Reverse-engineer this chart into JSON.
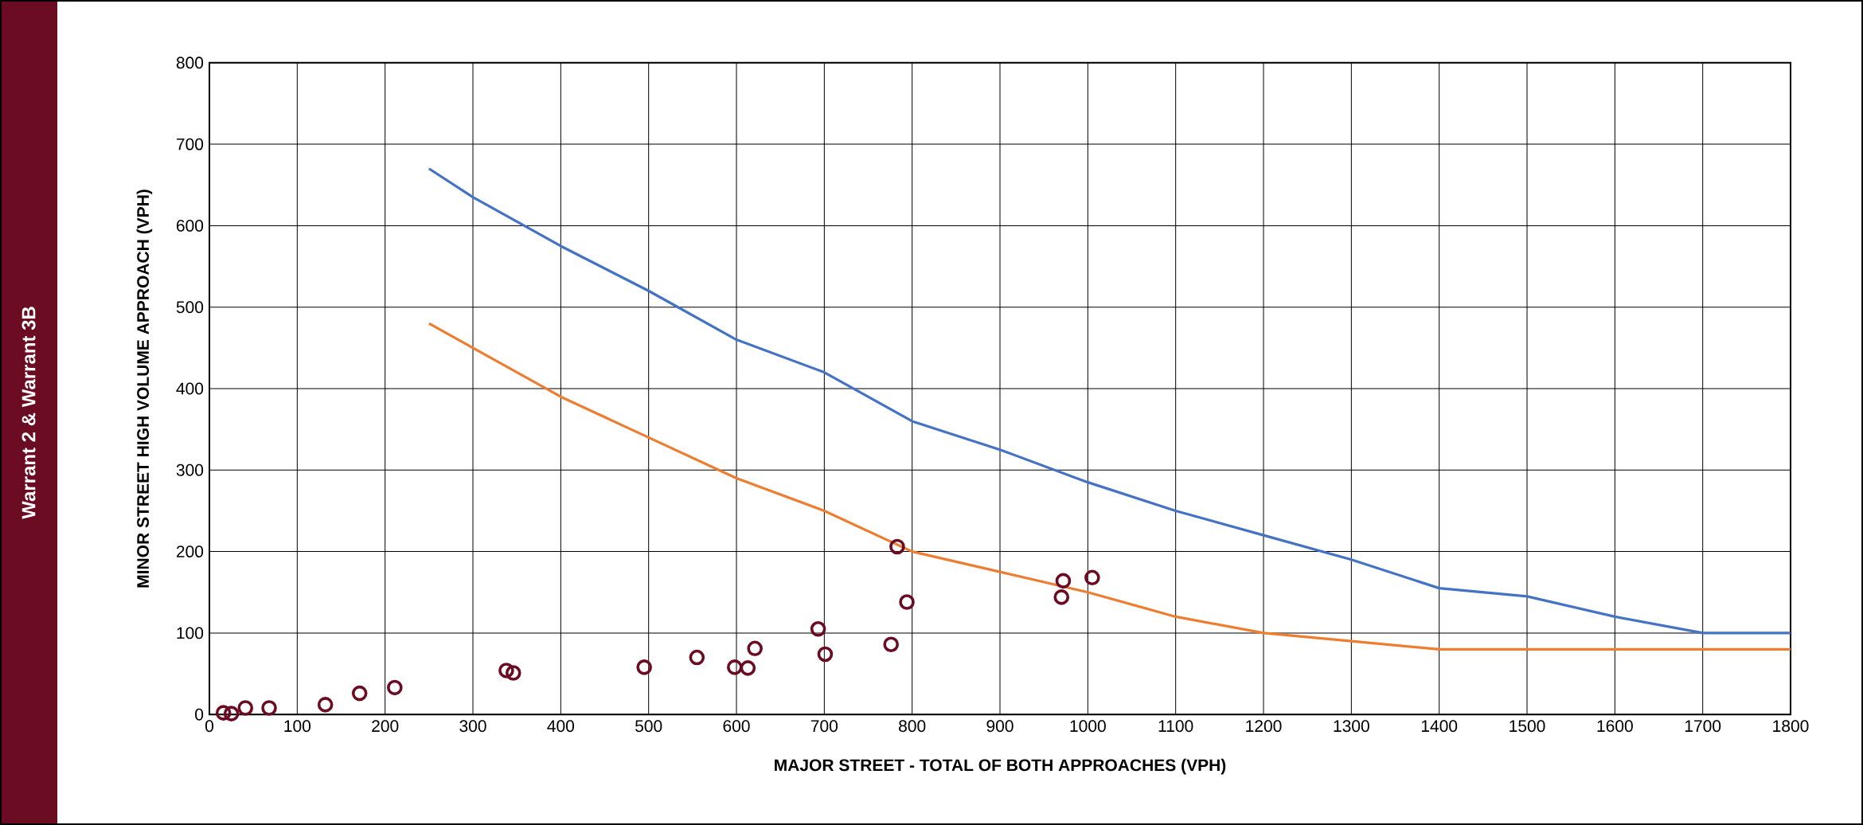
{
  "chart_data": {
    "type": "line",
    "title": "Warrant 2 & Warrant 3B",
    "xlabel": "MAJOR STREET - TOTAL OF BOTH APPROACHES (VPH)",
    "ylabel": "MINOR STREET HIGH VOLUME  APPROACH (VPH)",
    "xlim": [
      0,
      1800
    ],
    "xticks": [
      0,
      100,
      200,
      300,
      400,
      500,
      600,
      700,
      800,
      900,
      1000,
      1100,
      1200,
      1300,
      1400,
      1500,
      1600,
      1700,
      1800
    ],
    "ylim": [
      0,
      800
    ],
    "yticks": [
      0,
      100,
      200,
      300,
      400,
      500,
      600,
      700,
      800
    ],
    "grid": true,
    "series": [
      {
        "color": "#4472c4",
        "marker": "none",
        "x": [
          250,
          300,
          400,
          500,
          600,
          700,
          800,
          900,
          1000,
          1100,
          1200,
          1300,
          1400,
          1500,
          1600,
          1700,
          1800
        ],
        "values": [
          670,
          635,
          575,
          520,
          460,
          420,
          360,
          325,
          285,
          250,
          220,
          190,
          155,
          145,
          120,
          100,
          100
        ]
      },
      {
        "color": "#ed7d31",
        "marker": "none",
        "x": [
          250,
          300,
          400,
          500,
          600,
          700,
          800,
          900,
          1000,
          1100,
          1200,
          1300,
          1400,
          1500,
          1600,
          1700,
          1800
        ],
        "values": [
          480,
          450,
          390,
          340,
          290,
          250,
          200,
          175,
          150,
          120,
          100,
          90,
          80,
          80,
          80,
          80,
          80
        ]
      },
      {
        "type": "scatter",
        "color": "#6b0c22",
        "marker": "circle",
        "x": [
          16,
          25,
          41,
          68,
          132,
          171,
          211,
          338,
          346,
          495,
          555,
          598,
          613,
          621,
          693,
          701,
          776,
          783,
          794,
          970,
          972,
          1005
        ],
        "values": [
          2,
          1,
          8,
          8,
          12,
          26,
          33,
          54,
          51,
          58,
          70,
          58,
          57,
          81,
          105,
          74,
          86,
          206,
          138,
          144,
          164,
          168
        ]
      }
    ]
  }
}
